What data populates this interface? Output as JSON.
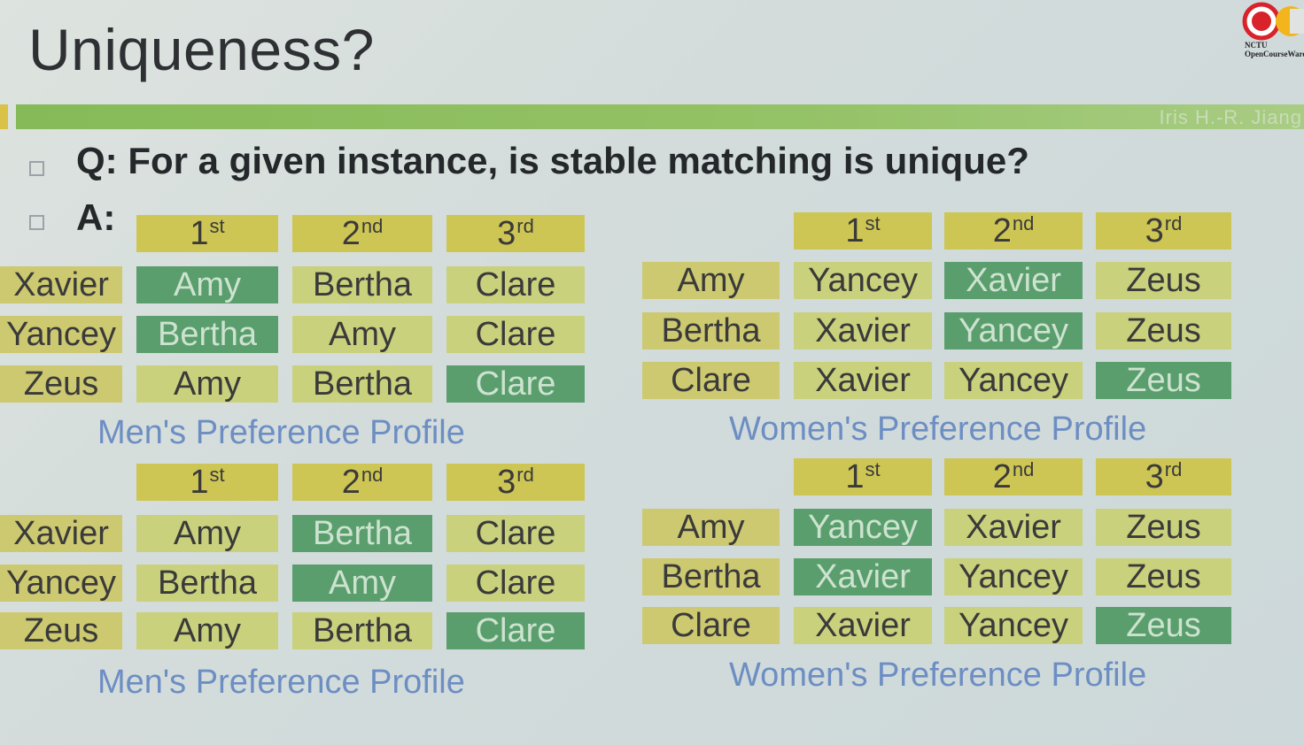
{
  "slide": {
    "title": "Uniqueness?",
    "author": "Iris H.-R. Jiang",
    "logo_text": "NCTU OpenCourseWare",
    "question": "Q: For a given instance, is stable matching is unique?",
    "answer_label": "A:"
  },
  "colors": {
    "title_bar": "#8fbe5f",
    "header_cell": "#cdc654",
    "name_cell": "#cdc970",
    "pref_cell": "#c9d17c",
    "highlight_cell": "#5a9e6e",
    "caption_text": "#6d8ec3"
  },
  "header_labels": [
    {
      "num": "1",
      "sup": "st"
    },
    {
      "num": "2",
      "sup": "nd"
    },
    {
      "num": "3",
      "sup": "rd"
    }
  ],
  "tables": [
    {
      "caption": "Men's Preference Profile",
      "rows": [
        {
          "name": "Xavier",
          "prefs": [
            "Amy",
            "Bertha",
            "Clare"
          ],
          "highlight": 0
        },
        {
          "name": "Yancey",
          "prefs": [
            "Bertha",
            "Amy",
            "Clare"
          ],
          "highlight": 0
        },
        {
          "name": "Zeus",
          "prefs": [
            "Amy",
            "Bertha",
            "Clare"
          ],
          "highlight": 2
        }
      ]
    },
    {
      "caption": "Women's Preference Profile",
      "rows": [
        {
          "name": "Amy",
          "prefs": [
            "Yancey",
            "Xavier",
            "Zeus"
          ],
          "highlight": 1
        },
        {
          "name": "Bertha",
          "prefs": [
            "Xavier",
            "Yancey",
            "Zeus"
          ],
          "highlight": 1
        },
        {
          "name": "Clare",
          "prefs": [
            "Xavier",
            "Yancey",
            "Zeus"
          ],
          "highlight": 2
        }
      ]
    },
    {
      "caption": "Men's Preference Profile",
      "rows": [
        {
          "name": "Xavier",
          "prefs": [
            "Amy",
            "Bertha",
            "Clare"
          ],
          "highlight": 1
        },
        {
          "name": "Yancey",
          "prefs": [
            "Bertha",
            "Amy",
            "Clare"
          ],
          "highlight": 1
        },
        {
          "name": "Zeus",
          "prefs": [
            "Amy",
            "Bertha",
            "Clare"
          ],
          "highlight": 2
        }
      ]
    },
    {
      "caption": "Women's Preference Profile",
      "rows": [
        {
          "name": "Amy",
          "prefs": [
            "Yancey",
            "Xavier",
            "Zeus"
          ],
          "highlight": 0
        },
        {
          "name": "Bertha",
          "prefs": [
            "Xavier",
            "Yancey",
            "Zeus"
          ],
          "highlight": 0
        },
        {
          "name": "Clare",
          "prefs": [
            "Xavier",
            "Yancey",
            "Zeus"
          ],
          "highlight": 2
        }
      ]
    }
  ]
}
